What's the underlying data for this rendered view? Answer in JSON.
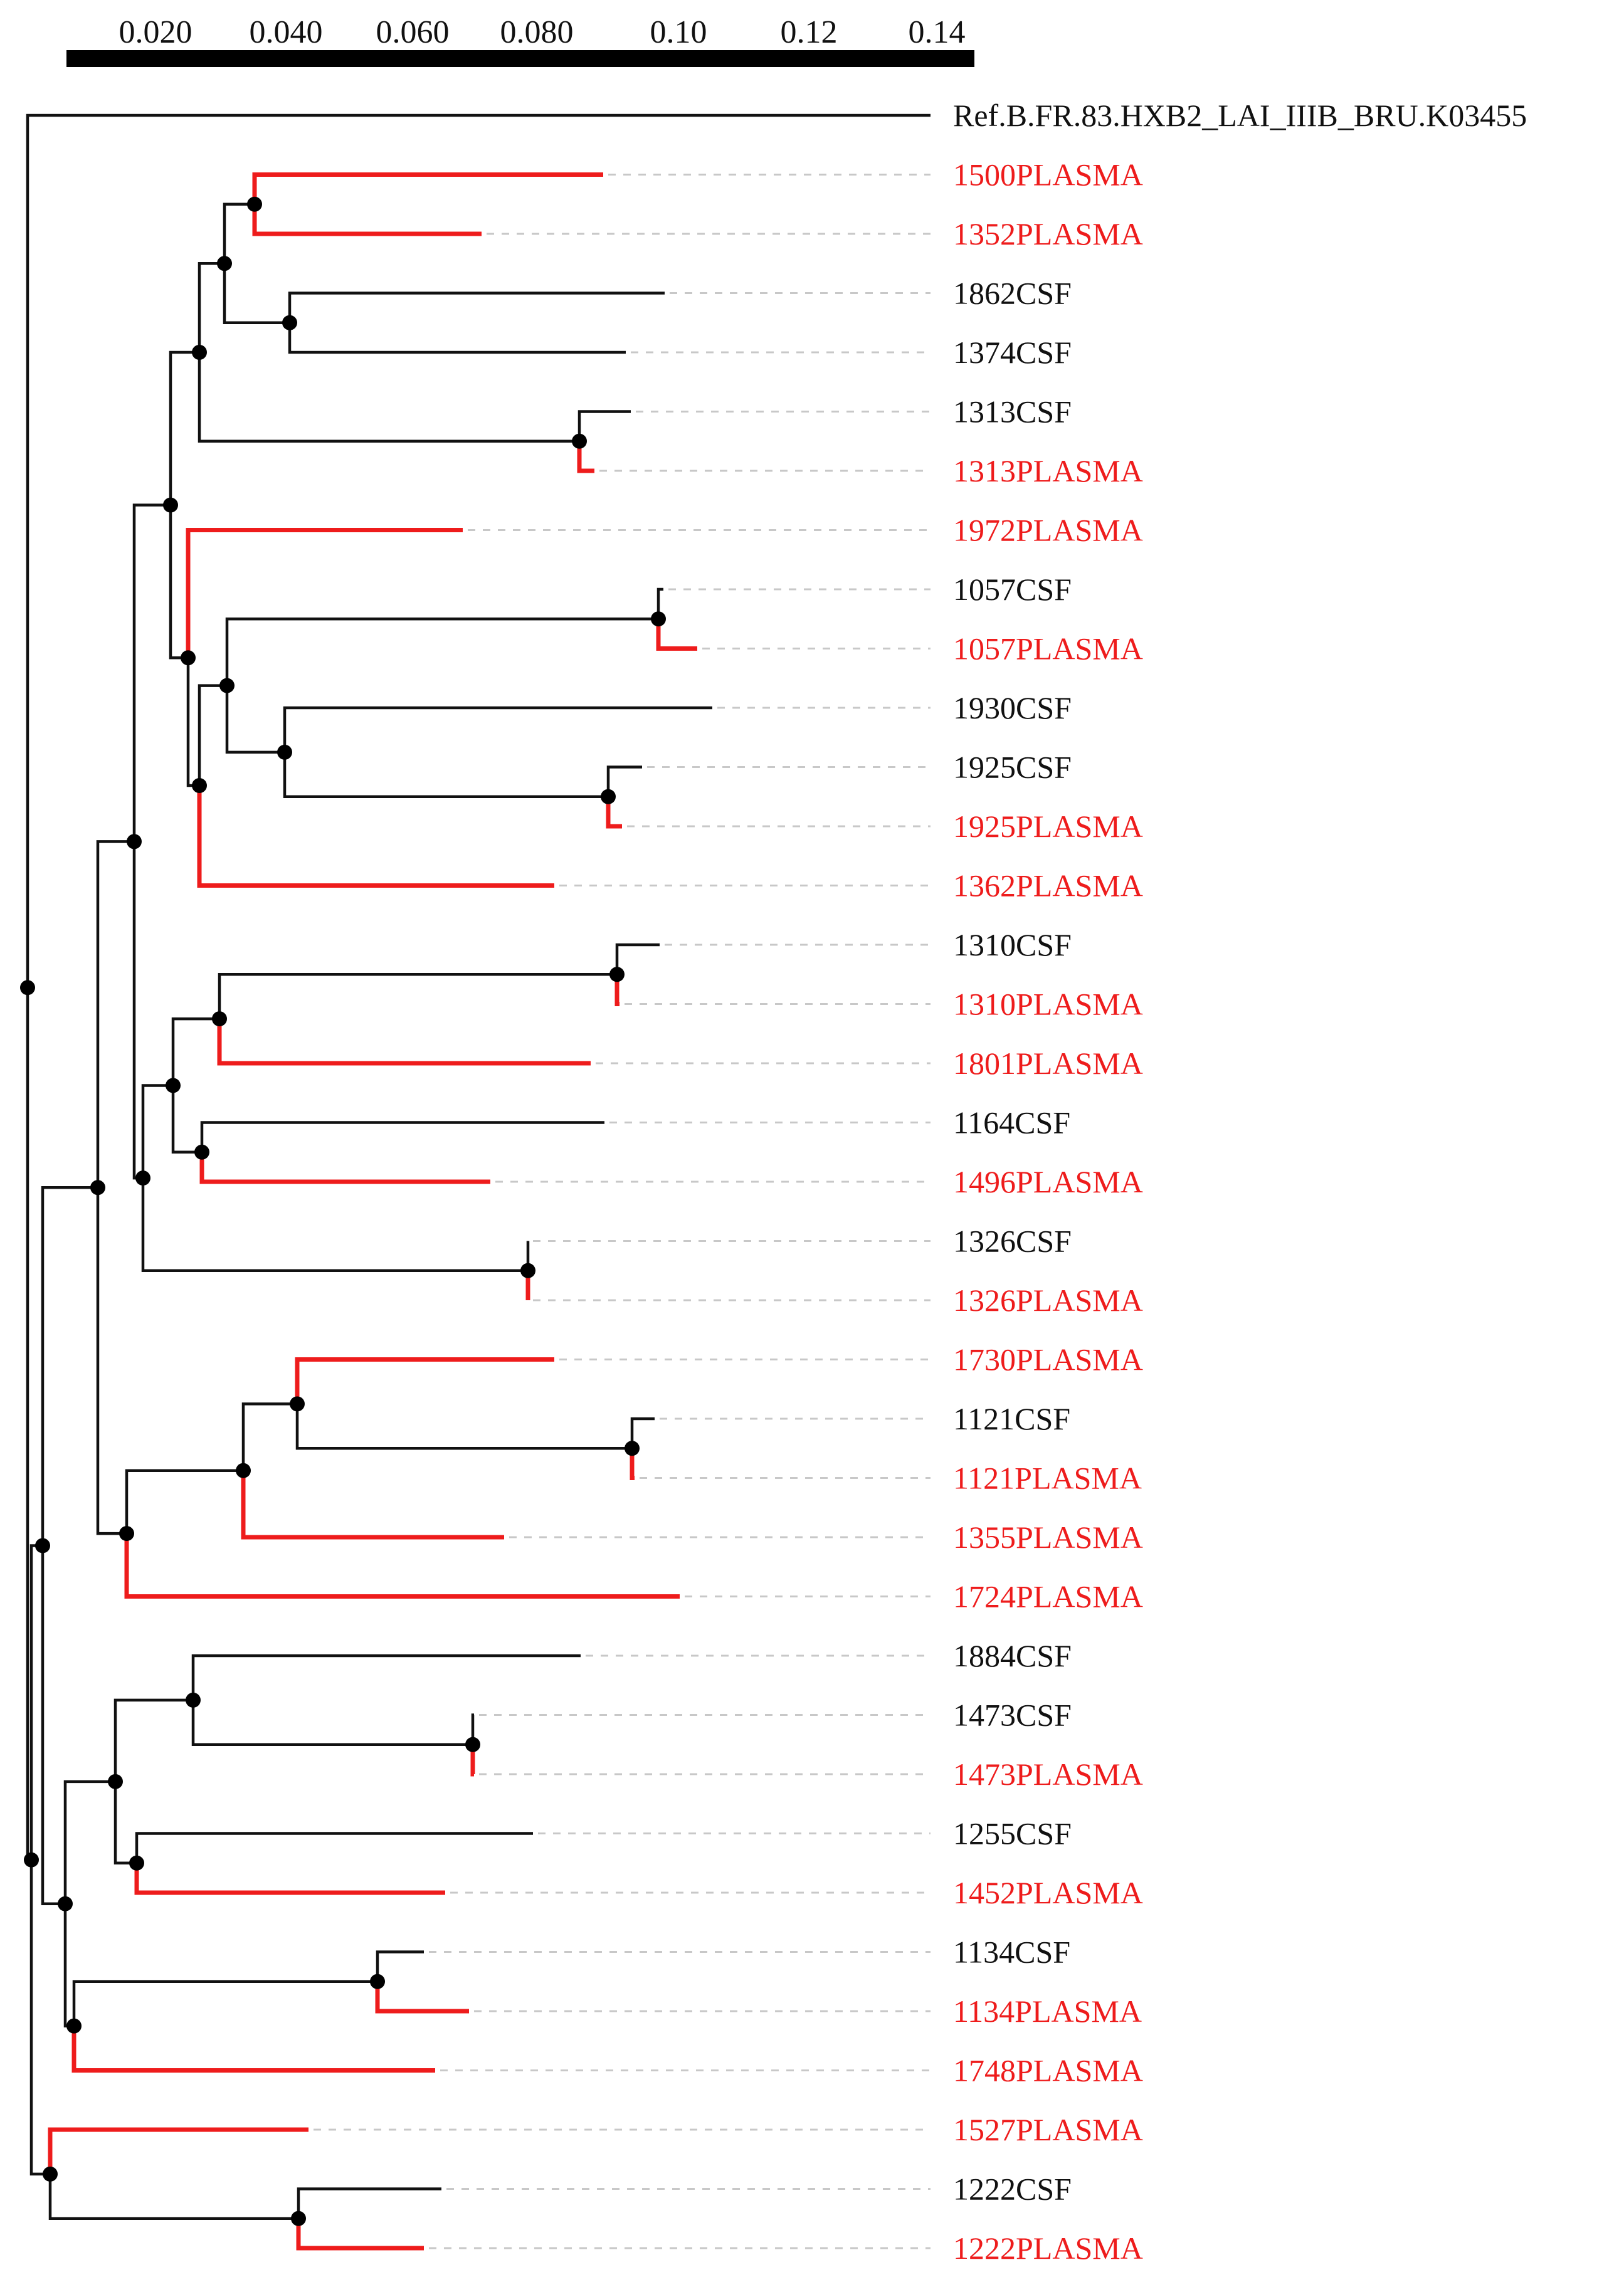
{
  "scale_bar": {
    "ticks": [
      "0.020",
      "0.040",
      "0.060",
      "0.080",
      "0.10",
      "0.12",
      "0.14"
    ]
  },
  "tips": [
    {
      "label": "Ref.B.FR.83.HXB2_LAI_IIIB_BRU.K03455",
      "tissue": "reference"
    },
    {
      "label": "1500PLASMA",
      "tissue": "plasma"
    },
    {
      "label": "1352PLASMA",
      "tissue": "plasma"
    },
    {
      "label": "1862CSF",
      "tissue": "csf"
    },
    {
      "label": "1374CSF",
      "tissue": "csf"
    },
    {
      "label": "1313CSF",
      "tissue": "csf"
    },
    {
      "label": "1313PLASMA",
      "tissue": "plasma"
    },
    {
      "label": "1972PLASMA",
      "tissue": "plasma"
    },
    {
      "label": "1057CSF",
      "tissue": "csf"
    },
    {
      "label": "1057PLASMA",
      "tissue": "plasma"
    },
    {
      "label": "1930CSF",
      "tissue": "csf"
    },
    {
      "label": "1925CSF",
      "tissue": "csf"
    },
    {
      "label": "1925PLASMA",
      "tissue": "plasma"
    },
    {
      "label": "1362PLASMA",
      "tissue": "plasma"
    },
    {
      "label": "1310CSF",
      "tissue": "csf"
    },
    {
      "label": "1310PLASMA",
      "tissue": "plasma"
    },
    {
      "label": "1801PLASMA",
      "tissue": "plasma"
    },
    {
      "label": "1164CSF",
      "tissue": "csf"
    },
    {
      "label": "1496PLASMA",
      "tissue": "plasma"
    },
    {
      "label": "1326CSF",
      "tissue": "csf"
    },
    {
      "label": "1326PLASMA",
      "tissue": "plasma"
    },
    {
      "label": "1730PLASMA",
      "tissue": "plasma"
    },
    {
      "label": "1121CSF",
      "tissue": "csf"
    },
    {
      "label": "1121PLASMA",
      "tissue": "plasma"
    },
    {
      "label": "1355PLASMA",
      "tissue": "plasma"
    },
    {
      "label": "1724PLASMA",
      "tissue": "plasma"
    },
    {
      "label": "1884CSF",
      "tissue": "csf"
    },
    {
      "label": "1473CSF",
      "tissue": "csf"
    },
    {
      "label": "1473PLASMA",
      "tissue": "plasma"
    },
    {
      "label": "1255CSF",
      "tissue": "csf"
    },
    {
      "label": "1452PLASMA",
      "tissue": "plasma"
    },
    {
      "label": "1134CSF",
      "tissue": "csf"
    },
    {
      "label": "1134PLASMA",
      "tissue": "plasma"
    },
    {
      "label": "1748PLASMA",
      "tissue": "plasma"
    },
    {
      "label": "1527PLASMA",
      "tissue": "plasma"
    },
    {
      "label": "1222CSF",
      "tissue": "csf"
    },
    {
      "label": "1222PLASMA",
      "tissue": "plasma"
    }
  ],
  "colors": {
    "plasma": "#ee1c1c",
    "csf": "#111111",
    "reference": "#111111",
    "branch": "#111111",
    "node": "#000000",
    "leader": "#c8c8c8",
    "scale_bar": "#000000"
  }
}
